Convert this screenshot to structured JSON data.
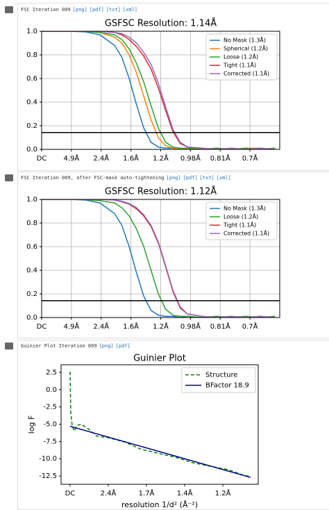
{
  "panels": [
    {
      "header": "FSC Iteration 009",
      "links": [
        "[png]",
        "[pdf]",
        "[txt]",
        "[xml]"
      ]
    },
    {
      "header": "FSC Iteration 009, after FSC-mask auto-tightening",
      "links": [
        "[png]",
        "[pdf]",
        "[txt]",
        "[xml]"
      ]
    },
    {
      "header": "Guinier Plot Iteration 009",
      "links": [
        "[png]",
        "[pdf]"
      ]
    }
  ],
  "chart_data": [
    {
      "type": "line",
      "title": "GSFSC Resolution: 1.14Å",
      "x": [
        0,
        0.1,
        0.2,
        0.3,
        0.4,
        0.5,
        0.55,
        0.6,
        0.65,
        0.7,
        0.75,
        0.8,
        0.85,
        0.9,
        0.95,
        1.0,
        1.1,
        1.2,
        1.3,
        1.4,
        1.5,
        1.6
      ],
      "xlim": [
        0,
        1.632
      ],
      "ylim": [
        0,
        1
      ],
      "xticks": [
        {
          "value": 0,
          "label": "DC"
        },
        {
          "value": 0.204,
          "label": "4.9Å"
        },
        {
          "value": 0.408,
          "label": "2.4Å"
        },
        {
          "value": 0.612,
          "label": "1.6Å"
        },
        {
          "value": 0.816,
          "label": "1.2Å"
        },
        {
          "value": 1.02,
          "label": "0.98Å"
        },
        {
          "value": 1.224,
          "label": "0.81Å"
        },
        {
          "value": 1.428,
          "label": "0.7Å"
        }
      ],
      "yticks": [
        {
          "value": 0,
          "label": "0.0"
        },
        0.2,
        0.4,
        0.6,
        0.8,
        {
          "value": 1,
          "label": "1.0"
        }
      ],
      "grid": true,
      "legend": "upper right",
      "threshold": 0.143,
      "series": [
        {
          "name": "No Mask (1.3Å)",
          "color": "#1f77b4",
          "values": [
            1,
            1,
            1,
            0.995,
            0.97,
            0.88,
            0.78,
            0.6,
            0.38,
            0.18,
            0.06,
            0.02,
            0.01,
            0.01,
            0,
            0.01,
            0,
            0.01,
            0,
            0.01,
            0,
            0.01
          ]
        },
        {
          "name": "Spherical (1.2Å)",
          "color": "#ff7f0e",
          "values": [
            1,
            1,
            1,
            1,
            0.99,
            0.95,
            0.9,
            0.8,
            0.65,
            0.45,
            0.25,
            0.1,
            0.03,
            0.01,
            0,
            0.01,
            0,
            0.01,
            0,
            0.01,
            0.01,
            0
          ]
        },
        {
          "name": "Loose (1.2Å)",
          "color": "#2ca02c",
          "values": [
            1,
            1,
            1,
            1,
            0.99,
            0.97,
            0.93,
            0.85,
            0.73,
            0.57,
            0.37,
            0.18,
            0.06,
            0.02,
            0.01,
            0.01,
            0,
            0.01,
            0,
            0.01,
            0,
            0.01
          ]
        },
        {
          "name": "Tight (1.1Å)",
          "color": "#d62728",
          "values": [
            1,
            1,
            1,
            1,
            1,
            0.99,
            0.97,
            0.93,
            0.87,
            0.79,
            0.68,
            0.52,
            0.33,
            0.15,
            0.05,
            0.02,
            0.01,
            0,
            0.01,
            0,
            0.01,
            0
          ]
        },
        {
          "name": "Corrected (1.1Å)",
          "color": "#9467bd",
          "values": [
            1,
            1,
            1,
            1,
            1,
            0.99,
            0.98,
            0.95,
            0.9,
            0.82,
            0.72,
            0.56,
            0.36,
            0.17,
            0.06,
            0.02,
            0.01,
            0,
            0.01,
            0,
            0.01,
            0
          ]
        }
      ]
    },
    {
      "type": "line",
      "title": "GSFSC Resolution: 1.12Å",
      "x": [
        0,
        0.1,
        0.2,
        0.3,
        0.4,
        0.5,
        0.55,
        0.6,
        0.65,
        0.7,
        0.75,
        0.8,
        0.85,
        0.9,
        0.95,
        1.0,
        1.1,
        1.2,
        1.3,
        1.4,
        1.5,
        1.6
      ],
      "xlim": [
        0,
        1.632
      ],
      "ylim": [
        0,
        1
      ],
      "xticks": [
        {
          "value": 0,
          "label": "DC"
        },
        {
          "value": 0.204,
          "label": "4.9Å"
        },
        {
          "value": 0.408,
          "label": "2.4Å"
        },
        {
          "value": 0.612,
          "label": "1.6Å"
        },
        {
          "value": 0.816,
          "label": "1.2Å"
        },
        {
          "value": 1.02,
          "label": "0.98Å"
        },
        {
          "value": 1.224,
          "label": "0.81Å"
        },
        {
          "value": 1.428,
          "label": "0.7Å"
        }
      ],
      "yticks": [
        {
          "value": 0,
          "label": "0.0"
        },
        0.2,
        0.4,
        0.6,
        0.8,
        {
          "value": 1,
          "label": "1.0"
        }
      ],
      "grid": true,
      "legend": "upper right",
      "threshold": 0.143,
      "series": [
        {
          "name": "No Mask (1.3Å)",
          "color": "#1f77b4",
          "values": [
            1,
            1,
            1,
            0.995,
            0.97,
            0.88,
            0.78,
            0.6,
            0.38,
            0.18,
            0.06,
            0.02,
            0.01,
            0.01,
            0,
            0.01,
            0,
            0.01,
            0,
            0.01,
            0,
            0.01
          ]
        },
        {
          "name": "Loose (1.2Å)",
          "color": "#2ca02c",
          "values": [
            1,
            1,
            1,
            1,
            0.99,
            0.97,
            0.93,
            0.86,
            0.75,
            0.6,
            0.4,
            0.2,
            0.07,
            0.02,
            0.01,
            0.01,
            0,
            0.01,
            0,
            0.01,
            0,
            0.01
          ]
        },
        {
          "name": "Tight (1.1Å)",
          "color": "#d62728",
          "values": [
            1,
            1,
            1,
            1,
            1,
            0.995,
            0.98,
            0.96,
            0.92,
            0.86,
            0.77,
            0.63,
            0.43,
            0.22,
            0.08,
            0.03,
            0.01,
            0,
            0.01,
            0,
            0.01,
            0
          ]
        },
        {
          "name": "Corrected (1.1Å)",
          "color": "#9467bd",
          "values": [
            1,
            1,
            1,
            1,
            1,
            0.995,
            0.985,
            0.965,
            0.93,
            0.87,
            0.78,
            0.64,
            0.44,
            0.23,
            0.09,
            0.03,
            0.01,
            0,
            0.01,
            0,
            0.01,
            0
          ]
        }
      ]
    },
    {
      "type": "line",
      "title": "Guinier Plot",
      "xlabel": "resolution 1/d² (Å⁻²)",
      "ylabel": "log F",
      "xlim": [
        -0.041,
        0.855
      ],
      "ylim": [
        -13.7,
        3.6
      ],
      "xticks": [
        {
          "value": 0,
          "label": "DC"
        },
        {
          "value": 0.1736,
          "label": "2.4Å"
        },
        {
          "value": 0.3472,
          "label": "1.7Å"
        },
        {
          "value": 0.5208,
          "label": "1.4Å"
        },
        {
          "value": 0.6944,
          "label": "1.2Å"
        }
      ],
      "yticks": [
        2.5,
        {
          "value": 0,
          "label": "0.0"
        },
        -2.5,
        {
          "value": -5,
          "label": "-5.0"
        },
        -7.5,
        {
          "value": -10,
          "label": "-10.0"
        },
        -12.5
      ],
      "grid": false,
      "legend": "upper right",
      "series": [
        {
          "name": "Structure",
          "color": "#008000",
          "dashed": true,
          "x": [
            0,
            0.003,
            0.006,
            0.01,
            0.02,
            0.03,
            0.05,
            0.08,
            0.12,
            0.18,
            0.25,
            0.32,
            0.4,
            0.48,
            0.56,
            0.64,
            0.72,
            0.78,
            0.82
          ],
          "values": [
            2.6,
            -3.5,
            -4.2,
            -5.3,
            -6.0,
            -5.2,
            -5.0,
            -5.6,
            -6.7,
            -7.0,
            -7.6,
            -8.6,
            -9.2,
            -9.8,
            -10.6,
            -11.1,
            -11.6,
            -12.3,
            -12.6
          ]
        },
        {
          "name": "BFactor 18.9",
          "color": "#00008b",
          "x": [
            0,
            0.82
          ],
          "values": [
            -5.3,
            -12.7
          ]
        }
      ]
    }
  ]
}
